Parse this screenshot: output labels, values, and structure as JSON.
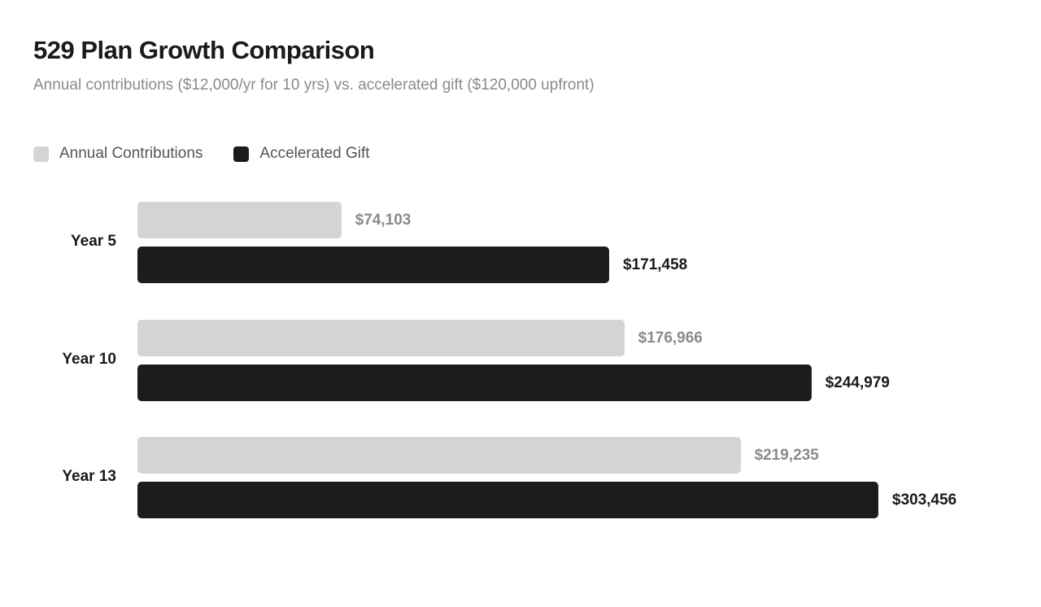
{
  "chart_data": {
    "type": "bar",
    "orientation": "horizontal",
    "title": "529 Plan Growth Comparison",
    "subtitle": "Annual contributions ($12,000/yr for 10 yrs) vs. accelerated gift ($120,000 upfront)",
    "categories": [
      "Year 5",
      "Year 10",
      "Year 13"
    ],
    "series": [
      {
        "name": "Annual Contributions",
        "color": "#d4d4d4",
        "label_color": "#8a8a8a",
        "values": [
          74103,
          176966,
          219235
        ],
        "labels": [
          "$74,103",
          "$176,966",
          "$219,235"
        ]
      },
      {
        "name": "Accelerated Gift",
        "color": "#1c1c1c",
        "label_color": "#1a1a1a",
        "values": [
          171458,
          244979,
          303456
        ],
        "labels": [
          "$171,458",
          "$244,979",
          "$303,456"
        ]
      }
    ],
    "legend_position": "top-left",
    "grid": false,
    "xlabel": "",
    "ylabel": ""
  }
}
